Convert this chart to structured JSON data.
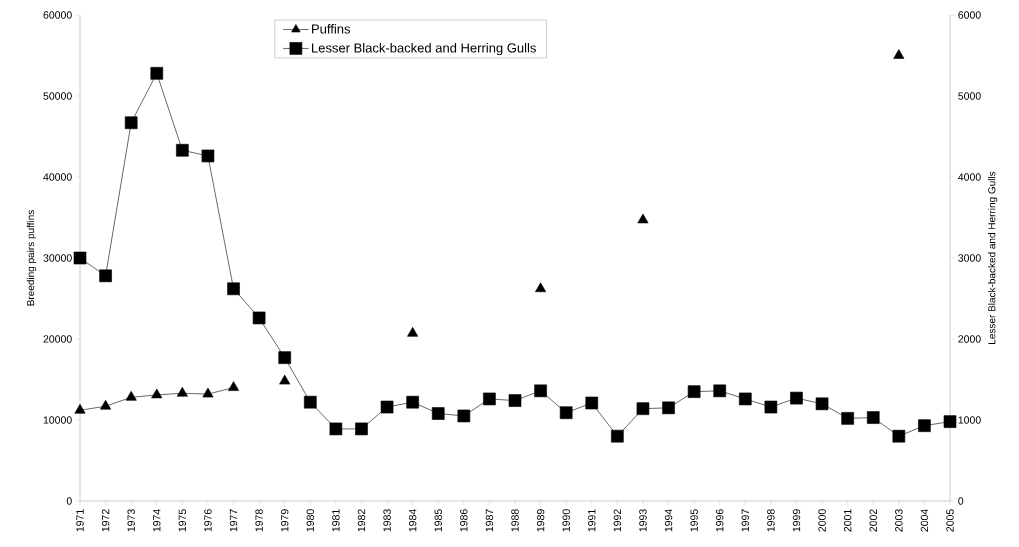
{
  "chart_data": {
    "type": "line",
    "categories": [
      "1971",
      "1972",
      "1973",
      "1974",
      "1975",
      "1976",
      "1977",
      "1978",
      "1979",
      "1980",
      "1981",
      "1982",
      "1983",
      "1984",
      "1985",
      "1986",
      "1987",
      "1988",
      "1989",
      "1990",
      "1991",
      "1992",
      "1993",
      "1994",
      "1995",
      "1996",
      "1997",
      "1998",
      "1999",
      "2000",
      "2001",
      "2002",
      "2003",
      "2004",
      "2005"
    ],
    "series": [
      {
        "name": "Puffins",
        "color": "#000000",
        "marker": "triangle",
        "values": [
          11200,
          11700,
          12800,
          13100,
          13300,
          13200,
          14000,
          null,
          14800,
          null,
          null,
          null,
          null,
          20700,
          null,
          null,
          null,
          null,
          26200,
          null,
          null,
          null,
          34700,
          null,
          null,
          null,
          null,
          null,
          null,
          null,
          null,
          null,
          55000,
          null,
          null
        ]
      },
      {
        "name": "Lesser Black-backed and Herring Gulls",
        "color": "#000000",
        "marker": "square",
        "axis": "y2",
        "values": [
          3000,
          2780,
          4670,
          5280,
          4330,
          4260,
          2620,
          2260,
          1770,
          1220,
          890,
          890,
          1160,
          1220,
          1080,
          1050,
          1260,
          1240,
          1360,
          1090,
          1210,
          800,
          1140,
          1150,
          1350,
          1360,
          1260,
          1160,
          1270,
          1200,
          1020,
          1030,
          800,
          930,
          980
        ]
      }
    ],
    "ylabel": "Breeding pairs puffins",
    "y2label": "Lesser Black-backed and Herring Gulls",
    "ylim": [
      0,
      60000
    ],
    "yticks": [
      0,
      10000,
      20000,
      30000,
      40000,
      50000,
      60000
    ],
    "y2lim": [
      0,
      6000
    ],
    "y2ticks": [
      0,
      1000,
      2000,
      3000,
      4000,
      5000,
      6000
    ],
    "legend": "top",
    "line_style": "solid",
    "grid": false
  }
}
